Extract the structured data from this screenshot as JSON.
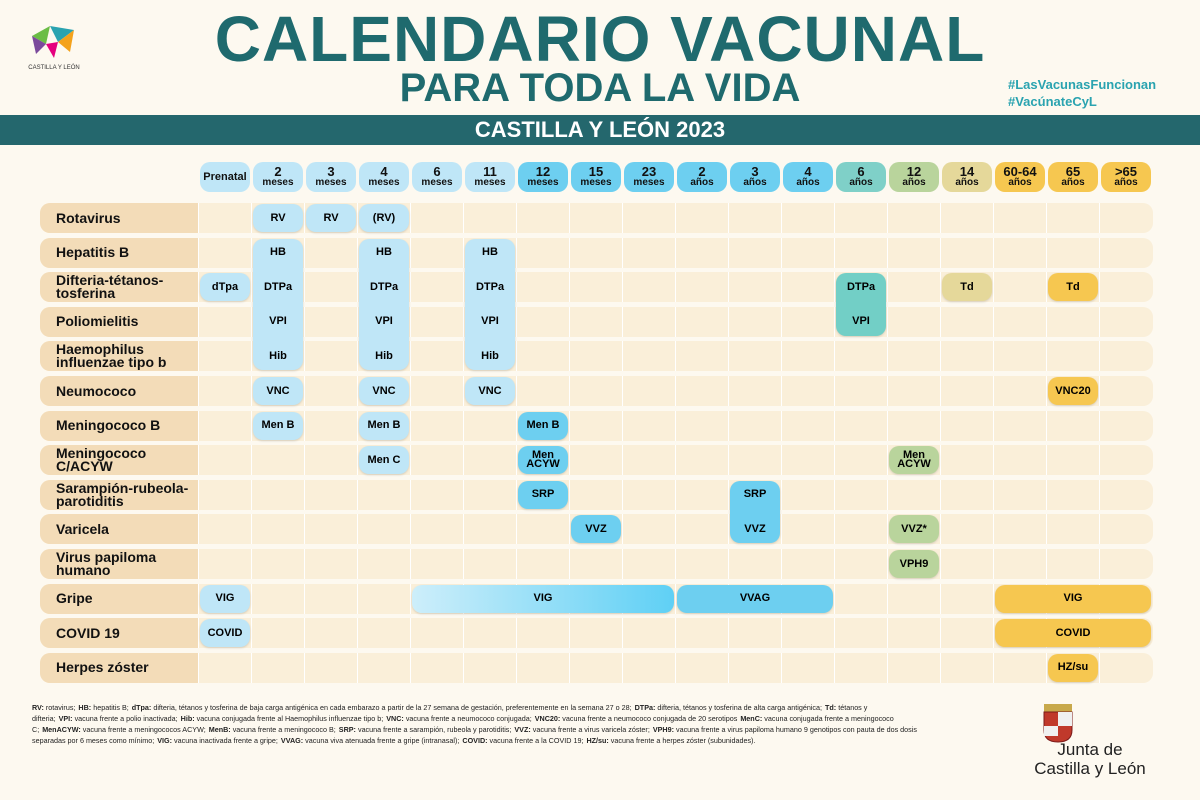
{
  "header": {
    "logo_text": "CASTILLA Y LEÓN",
    "title": "CALENDARIO VACUNAL",
    "subtitle": "PARA TODA LA VIDA",
    "hashtags": [
      "#LasVacunasFuncionan",
      "#VacúnateCyL"
    ],
    "band": "CASTILLA Y LEÓN 2023"
  },
  "columns": [
    {
      "top": "Prenatal",
      "color": "#bfe6f7"
    },
    {
      "top": "2",
      "bottom": "meses",
      "color": "#bfe6f7"
    },
    {
      "top": "3",
      "bottom": "meses",
      "color": "#bfe6f7"
    },
    {
      "top": "4",
      "bottom": "meses",
      "color": "#bfe6f7"
    },
    {
      "top": "6",
      "bottom": "meses",
      "color": "#bfe6f7"
    },
    {
      "top": "11",
      "bottom": "meses",
      "color": "#bfe6f7"
    },
    {
      "top": "12",
      "bottom": "meses",
      "color": "#6dcff0"
    },
    {
      "top": "15",
      "bottom": "meses",
      "color": "#6dcff0"
    },
    {
      "top": "23",
      "bottom": "meses",
      "color": "#6dcff0"
    },
    {
      "top": "2",
      "bottom": "años",
      "color": "#6dcff0"
    },
    {
      "top": "3",
      "bottom": "años",
      "color": "#6dcff0"
    },
    {
      "top": "4",
      "bottom": "años",
      "color": "#6dcff0"
    },
    {
      "top": "6",
      "bottom": "años",
      "color": "#7fd0c8"
    },
    {
      "top": "12",
      "bottom": "años",
      "color": "#b9d49c"
    },
    {
      "top": "14",
      "bottom": "años",
      "color": "#e5d89a"
    },
    {
      "top": "60-64",
      "bottom": "años",
      "color": "#f6c750"
    },
    {
      "top": "65",
      "bottom": "años",
      "color": "#f6c750"
    },
    {
      "top": ">65",
      "bottom": "años",
      "color": "#f6c750"
    }
  ],
  "rows": [
    "Rotavirus",
    "Hepatitis B",
    "Difteria-tétanos-tosferina",
    "Poliomielitis",
    "Haemophilus influenzae tipo b",
    "Neumococo",
    "Meningococo B",
    "Meningococo C/ACYW",
    "Sarampión-rubeola-parotiditis",
    "Varicela",
    "Virus papiloma humano",
    "Gripe",
    "COVID 19",
    "Herpes zóster"
  ],
  "blocks": [
    {
      "row": 0,
      "col": 1,
      "cols": 1,
      "rows": 1,
      "labels": [
        "RV"
      ],
      "color": "#bfe6f7"
    },
    {
      "row": 0,
      "col": 2,
      "cols": 1,
      "rows": 1,
      "labels": [
        "RV"
      ],
      "color": "#bfe6f7"
    },
    {
      "row": 0,
      "col": 3,
      "cols": 1,
      "rows": 1,
      "labels": [
        "(RV)"
      ],
      "color": "#bfe6f7"
    },
    {
      "row": 1,
      "col": 1,
      "cols": 1,
      "rows": 4,
      "labels": [
        "HB",
        "DTPa",
        "VPI",
        "Hib"
      ],
      "color": "#bfe6f7"
    },
    {
      "row": 1,
      "col": 3,
      "cols": 1,
      "rows": 4,
      "labels": [
        "HB",
        "DTPa",
        "VPI",
        "Hib"
      ],
      "color": "#bfe6f7"
    },
    {
      "row": 1,
      "col": 5,
      "cols": 1,
      "rows": 4,
      "labels": [
        "HB",
        "DTPa",
        "VPI",
        "Hib"
      ],
      "color": "#bfe6f7"
    },
    {
      "row": 2,
      "col": 0,
      "cols": 1,
      "rows": 1,
      "labels": [
        "dTpa"
      ],
      "color": "#bfe6f7"
    },
    {
      "row": 2,
      "col": 12,
      "cols": 1,
      "rows": 2,
      "labels": [
        "DTPa",
        "VPI"
      ],
      "color": "#72cfc6"
    },
    {
      "row": 2,
      "col": 14,
      "cols": 1,
      "rows": 1,
      "labels": [
        "Td"
      ],
      "color": "#e5d89a"
    },
    {
      "row": 2,
      "col": 16,
      "cols": 1,
      "rows": 1,
      "labels": [
        "Td"
      ],
      "color": "#f6c750"
    },
    {
      "row": 5,
      "col": 1,
      "cols": 1,
      "rows": 1,
      "labels": [
        "VNC"
      ],
      "color": "#bfe6f7"
    },
    {
      "row": 5,
      "col": 3,
      "cols": 1,
      "rows": 1,
      "labels": [
        "VNC"
      ],
      "color": "#bfe6f7"
    },
    {
      "row": 5,
      "col": 5,
      "cols": 1,
      "rows": 1,
      "labels": [
        "VNC"
      ],
      "color": "#bfe6f7"
    },
    {
      "row": 5,
      "col": 16,
      "cols": 1,
      "rows": 1,
      "labels": [
        "VNC20"
      ],
      "color": "#f6c750"
    },
    {
      "row": 6,
      "col": 1,
      "cols": 1,
      "rows": 1,
      "labels": [
        "Men B"
      ],
      "color": "#bfe6f7"
    },
    {
      "row": 6,
      "col": 3,
      "cols": 1,
      "rows": 1,
      "labels": [
        "Men B"
      ],
      "color": "#bfe6f7"
    },
    {
      "row": 6,
      "col": 6,
      "cols": 1,
      "rows": 1,
      "labels": [
        "Men B"
      ],
      "color": "#6dcff0"
    },
    {
      "row": 7,
      "col": 3,
      "cols": 1,
      "rows": 1,
      "labels": [
        "Men C"
      ],
      "color": "#bfe6f7"
    },
    {
      "row": 7,
      "col": 6,
      "cols": 1,
      "rows": 1,
      "labels": [
        "Men ACYW"
      ],
      "color": "#6dcff0"
    },
    {
      "row": 7,
      "col": 13,
      "cols": 1,
      "rows": 1,
      "labels": [
        "Men ACYW"
      ],
      "color": "#b9d49c"
    },
    {
      "row": 8,
      "col": 6,
      "cols": 1,
      "rows": 1,
      "labels": [
        "SRP"
      ],
      "color": "#6dcff0"
    },
    {
      "row": 8,
      "col": 10,
      "cols": 1,
      "rows": 2,
      "labels": [
        "SRP",
        "VVZ"
      ],
      "color": "#6dcff0"
    },
    {
      "row": 9,
      "col": 7,
      "cols": 1,
      "rows": 1,
      "labels": [
        "VVZ"
      ],
      "color": "#6dcff0"
    },
    {
      "row": 9,
      "col": 13,
      "cols": 1,
      "rows": 1,
      "labels": [
        "VVZ*"
      ],
      "color": "#b9d49c"
    },
    {
      "row": 10,
      "col": 13,
      "cols": 1,
      "rows": 1,
      "labels": [
        "VPH9"
      ],
      "color": "#b9d49c"
    },
    {
      "row": 11,
      "col": 0,
      "cols": 1,
      "rows": 1,
      "labels": [
        "VIG"
      ],
      "color": "#bfe6f7"
    },
    {
      "row": 11,
      "col": 4,
      "cols": 5,
      "rows": 1,
      "labels": [
        "VIG"
      ],
      "color": "#cdeefa",
      "color2": "#5fd0f5"
    },
    {
      "row": 11,
      "col": 9,
      "cols": 3,
      "rows": 1,
      "labels": [
        "VVAG"
      ],
      "color": "#6dcff0"
    },
    {
      "row": 11,
      "col": 15,
      "cols": 3,
      "rows": 1,
      "labels": [
        "VIG"
      ],
      "color": "#f6c750"
    },
    {
      "row": 12,
      "col": 0,
      "cols": 1,
      "rows": 1,
      "labels": [
        "COVID"
      ],
      "color": "#bfe6f7"
    },
    {
      "row": 12,
      "col": 15,
      "cols": 3,
      "rows": 1,
      "labels": [
        "COVID"
      ],
      "color": "#f6c750"
    },
    {
      "row": 13,
      "col": 16,
      "cols": 1,
      "rows": 1,
      "labels": [
        "HZ/su"
      ],
      "color": "#f6c750"
    }
  ],
  "footnote": [
    [
      "RV:",
      "rotavirus;"
    ],
    [
      "HB:",
      "hepatitis B;"
    ],
    [
      "dTpa:",
      "difteria, tétanos y tosferina de baja carga antigénica en cada embarazo a partir de la 27 semana de gestación, preferentemente en la semana 27 o 28;"
    ],
    [
      "DTPa:",
      "difteria, tétanos y tosferina de alta carga antigénica;"
    ],
    [
      "Td:",
      "tétanos y difteria;"
    ],
    [
      "VPI:",
      "vacuna frente a polio inactivada;"
    ],
    [
      "Hib:",
      "vacuna conjugada frente al Haemophilus influenzae tipo b;"
    ],
    [
      "VNC:",
      "vacuna frente a neumococo conjugada;"
    ],
    [
      "VNC20:",
      "vacuna frente a neumococo conjugada de 20 serotipos"
    ],
    [
      "MenC:",
      "vacuna conjugada frente a meningococo C;"
    ],
    [
      "MenACYW:",
      "vacuna frente a meningococos ACYW;"
    ],
    [
      "MenB:",
      "vacuna frente a meningococo B;"
    ],
    [
      "SRP:",
      "vacuna frente a sarampión, rubeola y parotiditis;"
    ],
    [
      "VVZ:",
      "vacuna frente a virus varicela zóster;"
    ],
    [
      "VPH9:",
      "vacuna frente a virus papiloma humano 9 genotipos con pauta de dos dosis separadas por 6 meses como mínimo;"
    ],
    [
      "VIG:",
      "vacuna inactivada frente a gripe;"
    ],
    [
      "VVAG:",
      "vacuna viva atenuada frente a gripe (intranasal);"
    ],
    [
      "COVID:",
      "vacuna frente a la COVID 19;"
    ],
    [
      "HZ/su:",
      "vacuna frente a herpes zóster (subunidades)."
    ]
  ],
  "footer_logo": [
    "Junta de",
    "Castilla y León"
  ]
}
